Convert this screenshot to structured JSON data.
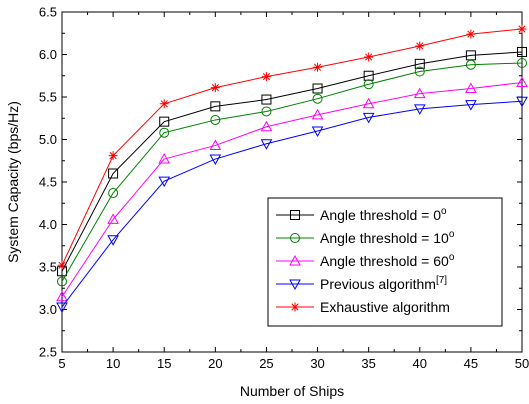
{
  "chart_data": {
    "type": "line",
    "title": "",
    "xlabel": "Number of Ships",
    "ylabel": "System Capacity (bps/Hz)",
    "x": [
      5,
      10,
      15,
      20,
      25,
      30,
      35,
      40,
      45,
      50
    ],
    "xlim": [
      5,
      50
    ],
    "ylim": [
      2.5,
      6.5
    ],
    "xticks": [
      "5",
      "10",
      "15",
      "20",
      "25",
      "30",
      "35",
      "40",
      "45",
      "50"
    ],
    "yticks": [
      "2.5",
      "3.0",
      "3.5",
      "4.0",
      "4.5",
      "5.0",
      "5.5",
      "6.0",
      "6.5"
    ],
    "grid": false,
    "legend_position": "lower-right",
    "series": [
      {
        "name": "Angle threshold = 0",
        "superscript": "o",
        "color": "#000000",
        "marker": "square",
        "values": [
          3.45,
          4.6,
          5.21,
          5.39,
          5.47,
          5.6,
          5.75,
          5.89,
          5.99,
          6.03
        ]
      },
      {
        "name": "Angle threshold = 10",
        "superscript": "o",
        "color": "#008000",
        "marker": "circle",
        "values": [
          3.33,
          4.37,
          5.08,
          5.23,
          5.33,
          5.48,
          5.65,
          5.8,
          5.88,
          5.9
        ]
      },
      {
        "name": "Angle threshold = 60",
        "superscript": "o",
        "color": "#ff00ff",
        "marker": "triangle-up",
        "values": [
          3.15,
          4.06,
          4.77,
          4.93,
          5.15,
          5.29,
          5.42,
          5.54,
          5.6,
          5.67
        ]
      },
      {
        "name": "Previous algorithm",
        "superscript": "[7]",
        "color": "#0000ff",
        "marker": "triangle-down",
        "values": [
          3.03,
          3.82,
          4.51,
          4.77,
          4.95,
          5.1,
          5.26,
          5.36,
          5.41,
          5.45
        ]
      },
      {
        "name": "Exhaustive algorithm",
        "superscript": "",
        "color": "#ff0000",
        "marker": "star",
        "values": [
          3.52,
          4.81,
          5.42,
          5.61,
          5.74,
          5.85,
          5.97,
          6.1,
          6.24,
          6.3
        ]
      }
    ]
  }
}
